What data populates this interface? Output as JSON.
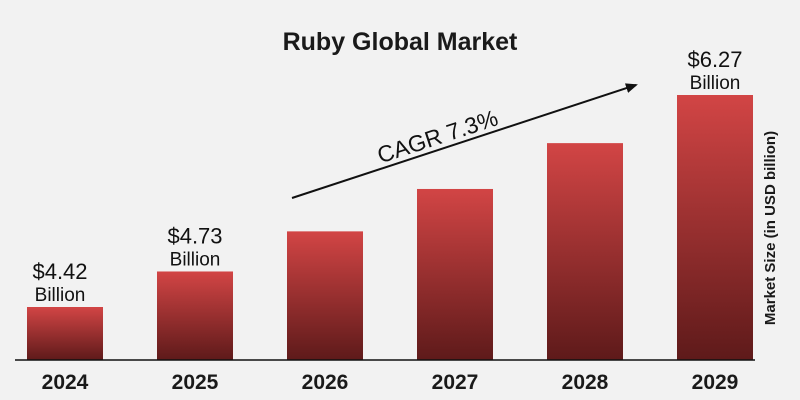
{
  "chart_data": {
    "type": "bar",
    "title": "Ruby Global Market",
    "categories": [
      "2024",
      "2025",
      "2026",
      "2027",
      "2028",
      "2029"
    ],
    "values": [
      4.42,
      4.73,
      5.08,
      5.45,
      5.85,
      6.27
    ],
    "data_labels": [
      {
        "index": 0,
        "value": "$4.42",
        "unit": "Billion"
      },
      {
        "index": 1,
        "value": "$4.73",
        "unit": "Billion"
      },
      {
        "index": 5,
        "value": "$6.27",
        "unit": "Billion"
      }
    ],
    "ylabel": "Market Size (in USD billion)",
    "xlabel": "",
    "annotation": "CAGR 7.3%",
    "grid": false,
    "legend": "none",
    "colors": {
      "bar_top": "#d24545",
      "bar_bottom": "#5e1a1a",
      "background": "#f2f2f2"
    }
  }
}
